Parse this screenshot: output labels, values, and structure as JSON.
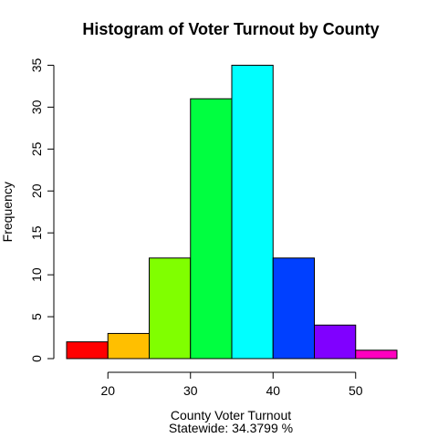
{
  "chart_data": {
    "type": "bar",
    "title": "Histogram of Voter Turnout by County",
    "xlabel": "County Voter Turnout",
    "subtitle": "Statewide: 34.3799 %",
    "ylabel": "Frequency",
    "bins": [
      {
        "start": 15,
        "end": 20,
        "count": 2,
        "color": "#FF0000"
      },
      {
        "start": 20,
        "end": 25,
        "count": 3,
        "color": "#FFBF00"
      },
      {
        "start": 25,
        "end": 30,
        "count": 12,
        "color": "#80FF00"
      },
      {
        "start": 30,
        "end": 35,
        "count": 31,
        "color": "#00FF40"
      },
      {
        "start": 35,
        "end": 40,
        "count": 35,
        "color": "#00FFFF"
      },
      {
        "start": 40,
        "end": 45,
        "count": 12,
        "color": "#0040FF"
      },
      {
        "start": 45,
        "end": 50,
        "count": 4,
        "color": "#8000FF"
      },
      {
        "start": 50,
        "end": 55,
        "count": 1,
        "color": "#FF00BF"
      }
    ],
    "xlim": [
      15,
      55
    ],
    "ylim": [
      0,
      35
    ],
    "x_ticks": [
      "20",
      "30",
      "40",
      "50"
    ],
    "y_ticks": [
      "0",
      "5",
      "10",
      "15",
      "20",
      "25",
      "30",
      "35"
    ],
    "grid": false,
    "legend": "none"
  }
}
